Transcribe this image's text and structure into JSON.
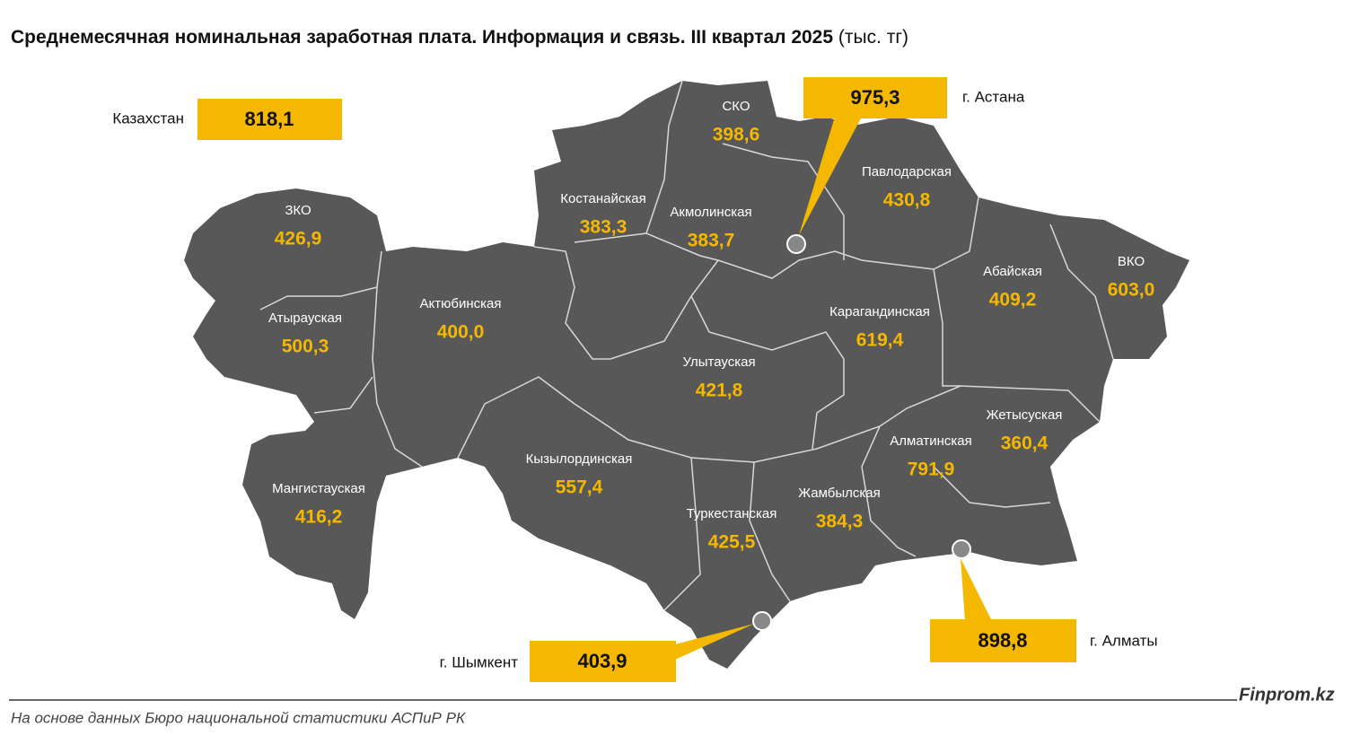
{
  "title": "Среднемесячная номинальная заработная плата. Информация и связь. III квартал 2025",
  "title_unit": "(тыс. тг)",
  "national": {
    "label": "Казахстан",
    "value": "818,1"
  },
  "cities": [
    {
      "name": "г. Астана",
      "value": "975,3"
    },
    {
      "name": "г. Алматы",
      "value": "898,8"
    },
    {
      "name": "г. Шымкент",
      "value": "403,9"
    }
  ],
  "regions": [
    {
      "name": "СКО",
      "value": "398,6"
    },
    {
      "name": "Павлодарская",
      "value": "430,8"
    },
    {
      "name": "Костанайская",
      "value": "383,3"
    },
    {
      "name": "Акмолинская",
      "value": "383,7"
    },
    {
      "name": "ЗКО",
      "value": "426,9"
    },
    {
      "name": "ВКО",
      "value": "603,0"
    },
    {
      "name": "Абайская",
      "value": "409,2"
    },
    {
      "name": "Актюбинская",
      "value": "400,0"
    },
    {
      "name": "Карагандинская",
      "value": "619,4"
    },
    {
      "name": "Атырауская",
      "value": "500,3"
    },
    {
      "name": "Улытауская",
      "value": "421,8"
    },
    {
      "name": "Жетысуская",
      "value": "360,4"
    },
    {
      "name": "Алматинская",
      "value": "791,9"
    },
    {
      "name": "Кызылординская",
      "value": "557,4"
    },
    {
      "name": "Мангистауская",
      "value": "416,2"
    },
    {
      "name": "Жамбылская",
      "value": "384,3"
    },
    {
      "name": "Туркестанская",
      "value": "425,5"
    }
  ],
  "source": "На основе данных Бюро национальной статистики АСПиР РК",
  "brand": "Finprom.kz"
}
